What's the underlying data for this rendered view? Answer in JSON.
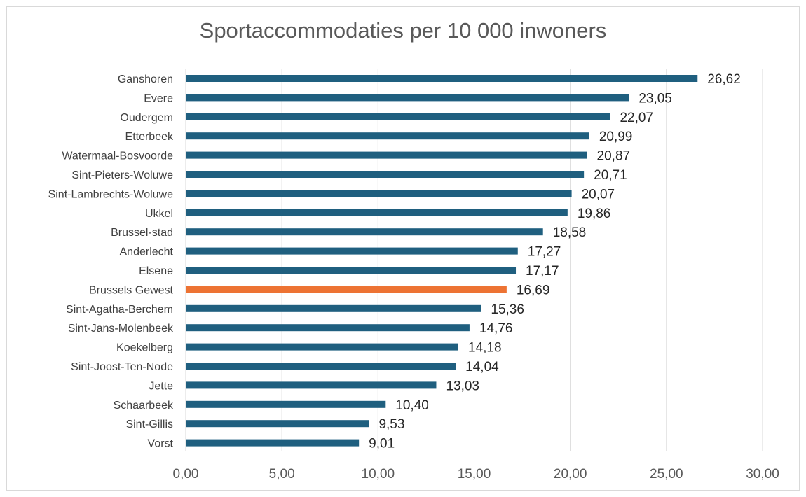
{
  "chart_data": {
    "type": "bar",
    "orientation": "horizontal",
    "title": "Sportaccommodaties per 10 000 inwoners",
    "categories": [
      "Ganshoren",
      "Evere",
      "Oudergem",
      "Etterbeek",
      "Watermaal-Bosvoorde",
      "Sint-Pieters-Woluwe",
      "Sint-Lambrechts-Woluwe",
      "Ukkel",
      "Brussel-stad",
      "Anderlecht",
      "Elsene",
      "Brussels Gewest",
      "Sint-Agatha-Berchem",
      "Sint-Jans-Molenbeek",
      "Koekelberg",
      "Sint-Joost-Ten-Node",
      "Jette",
      "Schaarbeek",
      "Sint-Gillis",
      "Vorst"
    ],
    "values": [
      26.62,
      23.05,
      22.07,
      20.99,
      20.87,
      20.71,
      20.07,
      19.86,
      18.58,
      17.27,
      17.17,
      16.69,
      15.36,
      14.76,
      14.18,
      14.04,
      13.03,
      10.4,
      9.53,
      9.01
    ],
    "value_labels": [
      "26,62",
      "23,05",
      "22,07",
      "20,99",
      "20,87",
      "20,71",
      "20,07",
      "19,86",
      "18,58",
      "17,27",
      "17,17",
      "16,69",
      "15,36",
      "14,76",
      "14,18",
      "14,04",
      "13,03",
      "10,40",
      "9,53",
      "9,01"
    ],
    "highlight_category": "Brussels Gewest",
    "xlim": [
      0,
      30
    ],
    "x_ticks": [
      0,
      5,
      10,
      15,
      20,
      25,
      30
    ],
    "x_tick_labels": [
      "0,00",
      "5,00",
      "10,00",
      "15,00",
      "20,00",
      "25,00",
      "30,00"
    ],
    "grid": true,
    "legend": false,
    "colors": {
      "bar": "#1f5f7f",
      "highlight": "#ed7333",
      "grid": "#d9d9d9"
    }
  }
}
